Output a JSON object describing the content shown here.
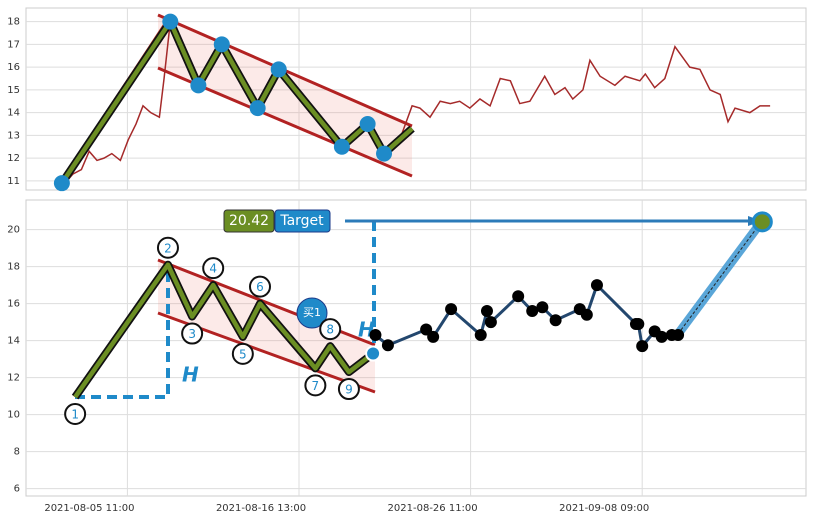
{
  "chart_data": [
    {
      "type": "line",
      "color": "#a52a2a",
      "grid": true,
      "xlim": [
        0,
        100
      ],
      "xticks": [
        13,
        35,
        57,
        79
      ],
      "ylim": [
        10.6,
        18.6
      ],
      "yticks": [
        11,
        12,
        13,
        14,
        15,
        16,
        17,
        18
      ],
      "x": [
        5.0,
        6.0,
        7.1,
        8.1,
        9.1,
        10.0,
        11.0,
        12.1,
        13.1,
        14.1,
        15.0,
        16.0,
        17.1,
        17.7,
        18.5,
        22.1,
        25.1,
        29.7,
        32.4,
        36.4,
        40.5,
        43.8,
        45.9,
        47.9,
        49.5,
        50.5,
        51.8,
        53.1,
        54.4,
        55.6,
        56.9,
        58.2,
        59.5,
        60.8,
        62.1,
        63.3,
        64.6,
        66.5,
        67.8,
        69.1,
        70.1,
        71.4,
        72.3,
        73.6,
        75.5,
        76.8,
        78.7,
        79.4,
        80.6,
        81.9,
        83.2,
        85.1,
        86.4,
        87.7,
        89.0,
        90.0,
        90.9,
        92.8,
        94.1,
        95.4
      ],
      "values": [
        10.9,
        11.3,
        11.5,
        12.3,
        11.9,
        12.0,
        12.2,
        11.9,
        12.8,
        13.5,
        14.3,
        14.0,
        13.8,
        15.5,
        18.0,
        15.2,
        17.0,
        14.2,
        15.9,
        14.0,
        12.5,
        13.5,
        12.2,
        12.8,
        14.3,
        14.2,
        13.8,
        14.5,
        14.4,
        14.5,
        14.2,
        14.6,
        14.3,
        15.5,
        15.4,
        14.4,
        14.5,
        15.6,
        14.8,
        15.1,
        14.6,
        15.0,
        16.3,
        15.6,
        15.2,
        15.6,
        15.4,
        15.7,
        15.1,
        15.5,
        16.9,
        16.0,
        15.9,
        15.0,
        14.8,
        13.6,
        14.2,
        14.0,
        14.3,
        14.3
      ],
      "pattern_x": [
        4.6,
        18.5,
        22.1,
        25.1,
        29.7,
        32.4,
        40.5,
        43.8,
        45.9,
        49.5
      ],
      "pattern_values": [
        10.9,
        18.0,
        15.2,
        17.0,
        14.2,
        15.9,
        12.5,
        13.5,
        12.2,
        13.3
      ]
    },
    {
      "type": "pattern",
      "grid": true,
      "xlim": [
        0,
        100
      ],
      "xticks": [
        {
          "value": 13,
          "label": "2021-08-05 11:00"
        },
        {
          "value": 35,
          "label": "2021-08-16 13:00"
        },
        {
          "value": 57,
          "label": "2021-08-26 11:00"
        },
        {
          "value": 79,
          "label": "2021-09-08 09:00"
        }
      ],
      "ylim": [
        5.6,
        21.6
      ],
      "yticks": [
        6,
        8,
        10,
        12,
        14,
        16,
        18,
        20
      ],
      "pattern_x": [
        6.3,
        18.2,
        21.3,
        24.0,
        27.8,
        30.0,
        37.1,
        39.0,
        41.4,
        44.5
      ],
      "pattern_values": [
        10.95,
        18.1,
        15.3,
        17.0,
        14.2,
        16.0,
        12.5,
        13.7,
        12.3,
        13.3
      ],
      "pattern_labels": [
        "1",
        "2",
        "3",
        "4",
        "5",
        "6",
        "7",
        "8",
        "9",
        null
      ],
      "after_x": [
        44.8,
        46.4,
        51.3,
        52.2,
        54.5,
        58.3,
        59.1,
        59.6,
        63.1,
        64.9,
        66.2,
        67.9,
        71.0,
        71.9,
        73.2,
        78.2,
        78.5,
        79.0,
        80.6,
        81.5,
        82.8,
        83.6
      ],
      "after_values": [
        14.3,
        13.75,
        14.6,
        14.2,
        15.7,
        14.3,
        15.6,
        15.0,
        16.4,
        15.6,
        15.8,
        15.1,
        15.7,
        15.4,
        17.0,
        14.9,
        14.9,
        13.7,
        14.5,
        14.2,
        14.3,
        14.3
      ],
      "height_label": "H",
      "buy_label": "买1",
      "target": 20.42,
      "target_x": 94.4,
      "target_label": "Target"
    }
  ]
}
